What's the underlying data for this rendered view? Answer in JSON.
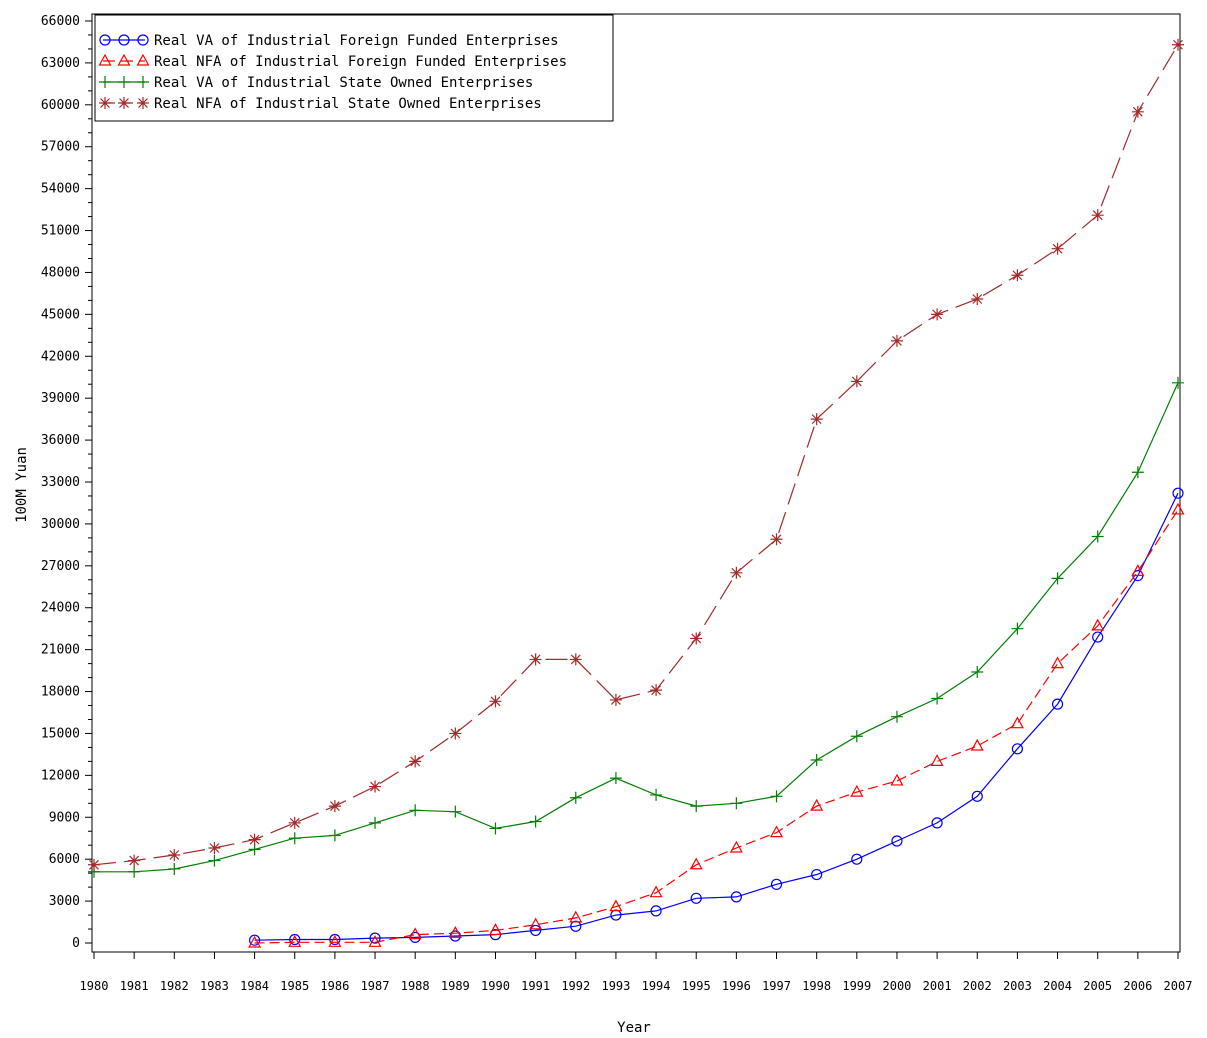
{
  "chart_data": {
    "type": "line",
    "title": "",
    "xlabel": "Year",
    "ylabel": "100M Yuan",
    "xlim": [
      1980,
      2007
    ],
    "ylim": [
      0,
      66000
    ],
    "x_ticks": [
      1980,
      1981,
      1982,
      1983,
      1984,
      1985,
      1986,
      1987,
      1988,
      1989,
      1990,
      1991,
      1992,
      1993,
      1994,
      1995,
      1996,
      1997,
      1998,
      1999,
      2000,
      2001,
      2002,
      2003,
      2004,
      2005,
      2006,
      2007
    ],
    "y_ticks": [
      0,
      3000,
      6000,
      9000,
      12000,
      15000,
      18000,
      21000,
      24000,
      27000,
      30000,
      33000,
      36000,
      39000,
      42000,
      45000,
      48000,
      51000,
      54000,
      57000,
      60000,
      63000,
      66000
    ],
    "grid": false,
    "legend_position": "top-left",
    "series": [
      {
        "name": "Real VA of Industrial Foreign Funded Enterprises",
        "color": "#0000ff",
        "marker": "circle",
        "dash": "solid",
        "x": [
          1984,
          1985,
          1986,
          1987,
          1988,
          1989,
          1990,
          1991,
          1992,
          1993,
          1994,
          1995,
          1996,
          1997,
          1998,
          1999,
          2000,
          2001,
          2002,
          2003,
          2004,
          2005,
          2006,
          2007
        ],
        "values": [
          200,
          250,
          250,
          350,
          400,
          500,
          600,
          900,
          1200,
          2000,
          2300,
          3200,
          3300,
          4200,
          4900,
          6000,
          7300,
          8600,
          10500,
          13900,
          17100,
          21900,
          26300,
          32200
        ]
      },
      {
        "name": "Real NFA of Industrial Foreign Funded Enterprises",
        "color": "#ff0000",
        "marker": "triangle",
        "dash": "dashed",
        "x": [
          1984,
          1985,
          1986,
          1987,
          1988,
          1989,
          1990,
          1991,
          1992,
          1993,
          1994,
          1995,
          1996,
          1997,
          1998,
          1999,
          2000,
          2001,
          2002,
          2003,
          2004,
          2005,
          2006,
          2007
        ],
        "values": [
          0,
          50,
          50,
          50,
          600,
          700,
          900,
          1300,
          1800,
          2600,
          3600,
          5600,
          6800,
          7900,
          9800,
          10800,
          11600,
          13000,
          14100,
          15700,
          20000,
          22700,
          26600,
          31000
        ]
      },
      {
        "name": "Real VA of Industrial State Owned Enterprises",
        "color": "#008000",
        "marker": "plus",
        "dash": "solid",
        "x": [
          1980,
          1981,
          1982,
          1983,
          1984,
          1985,
          1986,
          1987,
          1988,
          1989,
          1990,
          1991,
          1992,
          1993,
          1994,
          1995,
          1996,
          1997,
          1998,
          1999,
          2000,
          2001,
          2002,
          2003,
          2004,
          2005,
          2006,
          2007
        ],
        "values": [
          5100,
          5100,
          5300,
          5900,
          6700,
          7500,
          7700,
          8600,
          9500,
          9400,
          8200,
          8700,
          10400,
          11800,
          10600,
          9800,
          10000,
          10500,
          13100,
          14800,
          16200,
          17500,
          19400,
          22500,
          26100,
          29100,
          33700,
          40100
        ]
      },
      {
        "name": "Real NFA of Industrial State Owned Enterprises",
        "color": "#a52a2a",
        "marker": "star",
        "dash": "long-dash",
        "x": [
          1980,
          1981,
          1982,
          1983,
          1984,
          1985,
          1986,
          1987,
          1988,
          1989,
          1990,
          1991,
          1992,
          1993,
          1994,
          1995,
          1996,
          1997,
          1998,
          1999,
          2000,
          2001,
          2002,
          2003,
          2004,
          2005,
          2006,
          2007
        ],
        "values": [
          5600,
          5900,
          6300,
          6800,
          7400,
          8600,
          9800,
          11200,
          13000,
          15000,
          17300,
          20300,
          20300,
          17400,
          18100,
          21800,
          26500,
          28900,
          37500,
          40200,
          43100,
          45000,
          46100,
          47800,
          49700,
          52100,
          59500,
          64300
        ]
      }
    ]
  }
}
